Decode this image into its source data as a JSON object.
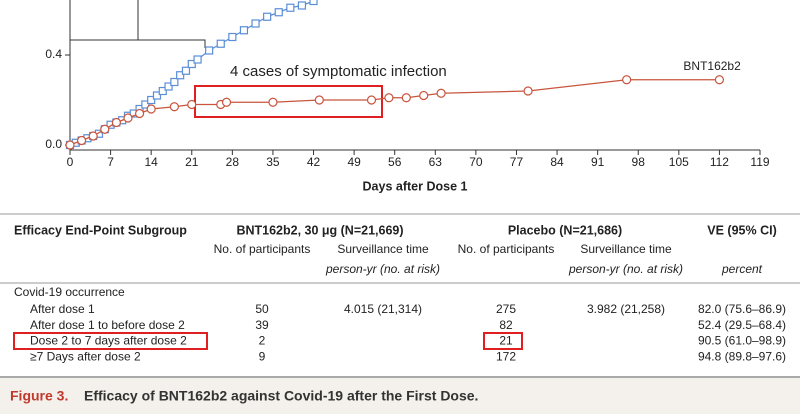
{
  "chart_data": {
    "type": "line",
    "annotation": "4 cases of symptomatic infection",
    "x_label": "Days after Dose 1",
    "xlim": [
      0,
      119
    ],
    "xticks": [
      0,
      7,
      14,
      21,
      28,
      35,
      42,
      49,
      56,
      63,
      70,
      77,
      84,
      91,
      98,
      105,
      112,
      119
    ],
    "ylim": [
      0,
      0.64
    ],
    "yticks": [
      {
        "value": 0,
        "label": "0.0"
      },
      0.4
    ],
    "series": [
      {
        "color": "#5b8ed6",
        "marker": "square",
        "x": [
          0,
          1,
          2,
          3,
          4,
          5,
          6,
          7,
          8,
          9,
          10,
          11,
          12,
          13,
          14,
          15,
          16,
          17,
          18,
          19,
          20,
          21,
          22,
          24,
          26,
          28,
          30,
          32,
          34,
          36,
          38,
          40,
          42
        ],
        "values": [
          0,
          0.01,
          0.02,
          0.03,
          0.04,
          0.05,
          0.07,
          0.09,
          0.1,
          0.11,
          0.13,
          0.14,
          0.16,
          0.18,
          0.2,
          0.22,
          0.24,
          0.26,
          0.28,
          0.31,
          0.33,
          0.36,
          0.38,
          0.42,
          0.45,
          0.48,
          0.51,
          0.54,
          0.57,
          0.59,
          0.61,
          0.62,
          0.64
        ]
      },
      {
        "name": "BNT162b2",
        "color": "#c8553d",
        "marker": "circle",
        "x": [
          0,
          2,
          4,
          6,
          8,
          10,
          12,
          14,
          18,
          21,
          26,
          27,
          35,
          43,
          52,
          55,
          58,
          61,
          64,
          79,
          96,
          112
        ],
        "values": [
          0,
          0.02,
          0.04,
          0.07,
          0.1,
          0.12,
          0.14,
          0.16,
          0.17,
          0.18,
          0.18,
          0.19,
          0.19,
          0.2,
          0.2,
          0.21,
          0.21,
          0.22,
          0.23,
          0.24,
          0.29,
          0.29
        ]
      }
    ]
  },
  "table": {
    "headers": [
      "Efficacy End-Point Subgroup",
      "BNT162b2, 30 μg (N=21,669)",
      "Placebo (N=21,686)",
      "VE (95% CI)"
    ],
    "subheaders": [
      "No. of participants",
      "Surveillance time",
      "person-yr (no. at risk)",
      "No. of participants",
      "Surveillance time",
      "person-yr (no. at risk)",
      "percent"
    ],
    "section": "Covid-19 occurrence",
    "rows": [
      [
        "After dose 1",
        "50",
        "4.015 (21,314)",
        "275",
        "3.982 (21,258)",
        "82.0 (75.6–86.9)"
      ],
      [
        "After dose 1 to before dose 2",
        "39",
        null,
        "82",
        null,
        "52.4 (29.5–68.4)"
      ],
      [
        "Dose 2 to 7 days after dose 2",
        "2",
        null,
        "21",
        null,
        "90.5 (61.0–98.9)"
      ],
      [
        "≥7 Days after dose 2",
        "9",
        null,
        "172",
        null,
        "94.8 (89.8–97.6)"
      ]
    ]
  },
  "caption": {
    "label": "Figure 3.",
    "text": "Efficacy of BNT162b2 against Covid-19 after the First Dose."
  }
}
